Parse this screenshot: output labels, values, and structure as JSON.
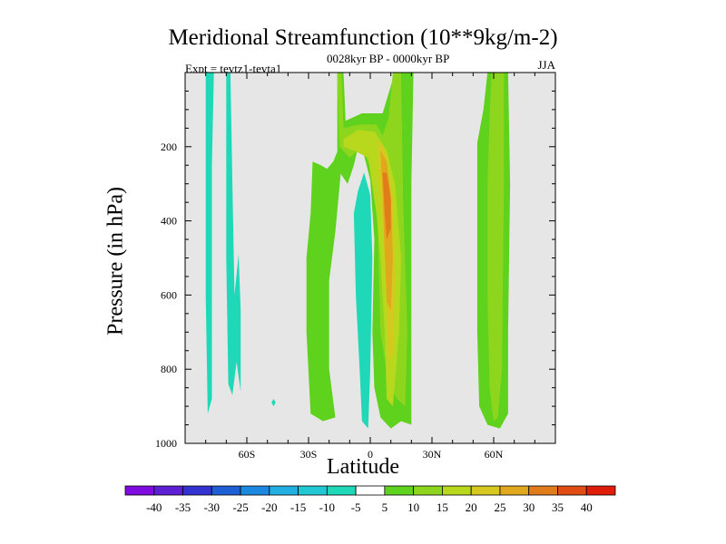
{
  "title": "Meridional Streamfunction (10**9kg/m-2)",
  "left_string": "Expt = tevtz1-tevta1",
  "center_string": "0028kyr BP - 0000kyr BP",
  "right_string": "JJA",
  "colors": {
    "background_field": "#e6e6e6",
    "levels": [
      "#7f0be0",
      "#5e1fd4",
      "#3333d1",
      "#1f5fd6",
      "#1c88e0",
      "#21aee0",
      "#20c8d6",
      "#1fd8b8",
      "#e6e6e6",
      "#5ed21c",
      "#8ed61e",
      "#b8d81e",
      "#d6c81e",
      "#e0a81c",
      "#e07c1a",
      "#e04c14",
      "#e01c0a"
    ]
  },
  "chart_data": {
    "type": "heatmap",
    "title": "Meridional Streamfunction (10**9kg/m-2)",
    "xlabel": "Latitude",
    "ylabel": "Pressure (in hPa)",
    "xlim": [
      -90,
      90
    ],
    "ylim": [
      1000,
      0
    ],
    "x_ticks": [
      -60,
      -30,
      0,
      30,
      60
    ],
    "x_tick_labels": [
      "60S",
      "30S",
      "0",
      "30N",
      "60N"
    ],
    "y_ticks": [
      200,
      400,
      600,
      800,
      1000
    ],
    "y_tick_labels": [
      "200",
      "400",
      "600",
      "800",
      "1000"
    ],
    "colorbar_levels": [
      -40,
      -35,
      -30,
      -25,
      -20,
      -15,
      -10,
      -5,
      5,
      10,
      15,
      20,
      25,
      30,
      35,
      40
    ],
    "colorbar_labels": [
      "-40",
      "-35",
      "-30",
      "-25",
      "-20",
      "-15",
      "-10",
      "-5",
      "5",
      "10",
      "15",
      "20",
      "25",
      "30",
      "35",
      "40"
    ],
    "regions": [
      {
        "name": "sh-high-lat-negative",
        "level": -7,
        "lat": [
          -81,
          -77
        ],
        "plev": [
          0,
          910
        ],
        "pts": [
          [
            -80,
            0
          ],
          [
            -76,
            0
          ],
          [
            -77,
            250
          ],
          [
            -77,
            600
          ],
          [
            -77,
            880
          ],
          [
            -79,
            920
          ],
          [
            -80,
            600
          ],
          [
            -80,
            300
          ]
        ]
      },
      {
        "name": "sh-high-lat-negative-2",
        "level": -7,
        "lat": [
          -70,
          -63
        ],
        "plev": [
          0,
          880
        ],
        "pts": [
          [
            -70,
            0
          ],
          [
            -68,
            0
          ],
          [
            -67,
            300
          ],
          [
            -66,
            600
          ],
          [
            -64,
            490
          ],
          [
            -63,
            640
          ],
          [
            -63,
            860
          ],
          [
            -65,
            780
          ],
          [
            -67,
            870
          ],
          [
            -69,
            840
          ],
          [
            -70,
            500
          ]
        ]
      },
      {
        "name": "small-blob",
        "level": -7,
        "lat": [
          -48,
          -46
        ],
        "plev": [
          870,
          910
        ],
        "pts": [
          [
            -47,
            880
          ],
          [
            -46,
            890
          ],
          [
            -47,
            900
          ],
          [
            -48,
            890
          ]
        ]
      },
      {
        "name": "sh-midlat-positive",
        "level": 7,
        "lat": [
          -30,
          -10
        ],
        "plev": [
          240,
          940
        ],
        "pts": [
          [
            -28,
            240
          ],
          [
            -24,
            250
          ],
          [
            -21,
            260
          ],
          [
            -18,
            240
          ],
          [
            -15,
            200
          ],
          [
            -13,
            190
          ],
          [
            -14,
            250
          ],
          [
            -17,
            430
          ],
          [
            -20,
            560
          ],
          [
            -20,
            800
          ],
          [
            -17,
            930
          ],
          [
            -23,
            940
          ],
          [
            -29,
            920
          ],
          [
            -31,
            700
          ],
          [
            -31,
            500
          ],
          [
            -29,
            380
          ]
        ]
      },
      {
        "name": "equatorial-negative",
        "level": -7,
        "lat": [
          -8,
          0
        ],
        "plev": [
          270,
          960
        ],
        "pts": [
          [
            -3,
            270
          ],
          [
            0,
            330
          ],
          [
            1,
            500
          ],
          [
            0,
            800
          ],
          [
            -1,
            960
          ],
          [
            -4,
            940
          ],
          [
            -5,
            820
          ],
          [
            -7,
            600
          ],
          [
            -8,
            380
          ],
          [
            -6,
            320
          ]
        ]
      },
      {
        "name": "hadley-positive-outer",
        "level": 7,
        "lat": [
          -16,
          21
        ],
        "plev": [
          0,
          960
        ],
        "pts": [
          [
            -16,
            0
          ],
          [
            -13,
            0
          ],
          [
            -12,
            130
          ],
          [
            -4,
            110
          ],
          [
            6,
            110
          ],
          [
            12,
            0
          ],
          [
            21,
            0
          ],
          [
            20,
            300
          ],
          [
            20,
            800
          ],
          [
            20,
            950
          ],
          [
            15,
            940
          ],
          [
            10,
            960
          ],
          [
            5,
            930
          ],
          [
            2,
            850
          ],
          [
            1,
            700
          ],
          [
            2,
            450
          ],
          [
            0,
            290
          ],
          [
            -5,
            180
          ],
          [
            -8,
            250
          ],
          [
            -11,
            300
          ],
          [
            -16,
            260
          ],
          [
            -16,
            120
          ]
        ]
      },
      {
        "name": "hadley-10",
        "level": 10,
        "lat": [
          -16,
          18
        ],
        "plev": [
          0,
          900
        ],
        "pts": [
          [
            -16,
            0
          ],
          [
            -14,
            0
          ],
          [
            -13,
            150
          ],
          [
            -5,
            140
          ],
          [
            3,
            140
          ],
          [
            6,
            170
          ],
          [
            9,
            120
          ],
          [
            11,
            0
          ],
          [
            15,
            0
          ],
          [
            16,
            350
          ],
          [
            18,
            700
          ],
          [
            17,
            900
          ],
          [
            13,
            880
          ],
          [
            9,
            840
          ],
          [
            5,
            700
          ],
          [
            4,
            500
          ],
          [
            3,
            300
          ],
          [
            -4,
            200
          ],
          [
            -10,
            230
          ],
          [
            -15,
            200
          ]
        ]
      },
      {
        "name": "hadley-15",
        "level": 15,
        "lat": [
          -13,
          15
        ],
        "plev": [
          150,
          900
        ],
        "pts": [
          [
            -13,
            180
          ],
          [
            -6,
            155
          ],
          [
            2,
            160
          ],
          [
            8,
            210
          ],
          [
            12,
            300
          ],
          [
            15,
            500
          ],
          [
            14,
            700
          ],
          [
            11,
            900
          ],
          [
            8,
            880
          ],
          [
            7,
            700
          ],
          [
            5,
            500
          ],
          [
            3,
            380
          ],
          [
            -1,
            230
          ],
          [
            -8,
            210
          ],
          [
            -13,
            200
          ]
        ]
      },
      {
        "name": "hadley-20",
        "level": 20,
        "lat": [
          4,
          12
        ],
        "plev": [
          180,
          780
        ],
        "pts": [
          [
            4,
            180
          ],
          [
            8,
            220
          ],
          [
            11,
            340
          ],
          [
            12,
            550
          ],
          [
            11,
            760
          ],
          [
            9,
            780
          ],
          [
            8,
            600
          ],
          [
            6,
            420
          ],
          [
            4,
            280
          ]
        ]
      },
      {
        "name": "hadley-25",
        "level": 25,
        "lat": [
          5,
          11
        ],
        "plev": [
          200,
          650
        ],
        "pts": [
          [
            5,
            210
          ],
          [
            8,
            240
          ],
          [
            10,
            330
          ],
          [
            11,
            500
          ],
          [
            10,
            640
          ],
          [
            8,
            620
          ],
          [
            7,
            480
          ],
          [
            6,
            330
          ]
        ]
      },
      {
        "name": "hadley-30",
        "level": 30,
        "lat": [
          6,
          10
        ],
        "plev": [
          250,
          450
        ],
        "pts": [
          [
            6,
            270
          ],
          [
            8,
            270
          ],
          [
            10,
            340
          ],
          [
            10,
            420
          ],
          [
            8,
            450
          ],
          [
            7,
            380
          ]
        ]
      },
      {
        "name": "nh-midlat-positive",
        "level": 7,
        "lat": [
          51,
          67
        ],
        "plev": [
          0,
          960
        ],
        "pts": [
          [
            57,
            0
          ],
          [
            67,
            0
          ],
          [
            68,
            300
          ],
          [
            67,
            700
          ],
          [
            67,
            920
          ],
          [
            63,
            960
          ],
          [
            57,
            950
          ],
          [
            53,
            900
          ],
          [
            52,
            700
          ],
          [
            52,
            400
          ],
          [
            52,
            190
          ],
          [
            55,
            100
          ]
        ]
      },
      {
        "name": "nh-midlat-10",
        "level": 10,
        "lat": [
          57,
          65
        ],
        "plev": [
          0,
          940
        ],
        "pts": [
          [
            59,
            0
          ],
          [
            65,
            0
          ],
          [
            65,
            300
          ],
          [
            64,
            800
          ],
          [
            62,
            930
          ],
          [
            60,
            940
          ],
          [
            58,
            850
          ],
          [
            57,
            600
          ],
          [
            57,
            300
          ],
          [
            58,
            120
          ]
        ]
      }
    ]
  }
}
